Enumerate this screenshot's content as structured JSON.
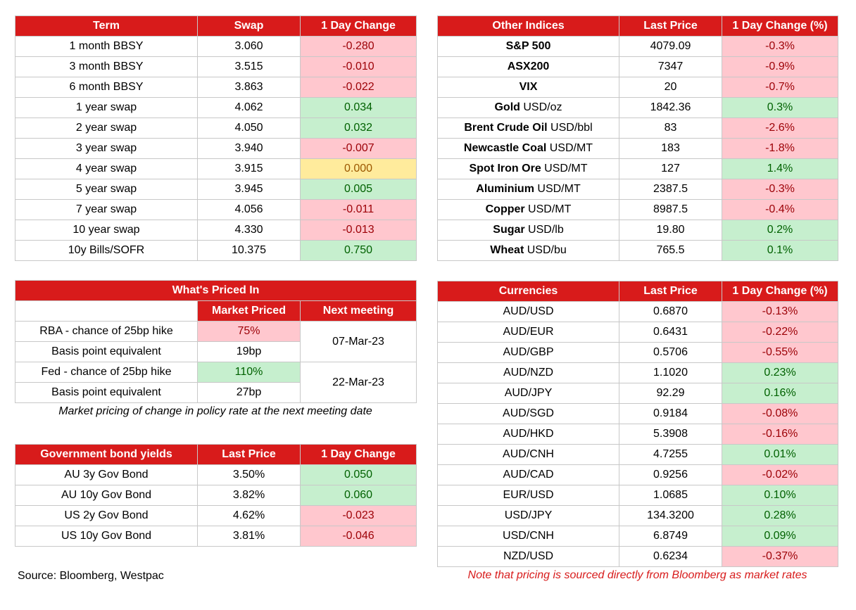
{
  "swaps": {
    "headers": [
      "Term",
      "Swap",
      "1 Day Change"
    ],
    "rows": [
      {
        "term": "1 month BBSY",
        "swap": "3.060",
        "change": "-0.280",
        "dir": "neg"
      },
      {
        "term": "3 month BBSY",
        "swap": "3.515",
        "change": "-0.010",
        "dir": "neg"
      },
      {
        "term": "6 month BBSY",
        "swap": "3.863",
        "change": "-0.022",
        "dir": "neg"
      },
      {
        "term": "1 year swap",
        "swap": "4.062",
        "change": "0.034",
        "dir": "pos"
      },
      {
        "term": "2 year swap",
        "swap": "4.050",
        "change": "0.032",
        "dir": "pos"
      },
      {
        "term": "3 year swap",
        "swap": "3.940",
        "change": "-0.007",
        "dir": "neg"
      },
      {
        "term": "4 year swap",
        "swap": "3.915",
        "change": "0.000",
        "dir": "neu"
      },
      {
        "term": "5 year swap",
        "swap": "3.945",
        "change": "0.005",
        "dir": "pos"
      },
      {
        "term": "7 year swap",
        "swap": "4.056",
        "change": "-0.011",
        "dir": "neg"
      },
      {
        "term": "10 year swap",
        "swap": "4.330",
        "change": "-0.013",
        "dir": "neg"
      },
      {
        "term": "10y Bills/SOFR",
        "swap": "10.375",
        "change": "0.750",
        "dir": "pos"
      }
    ]
  },
  "other_indices": {
    "headers": [
      "Other Indices",
      "Last Price",
      "1 Day Change (%)"
    ],
    "rows": [
      {
        "name": "S&P 500",
        "unit": "",
        "price": "4079.09",
        "change": "-0.3%",
        "dir": "neg"
      },
      {
        "name": "ASX200",
        "unit": "",
        "price": "7347",
        "change": "-0.9%",
        "dir": "neg"
      },
      {
        "name": "VIX",
        "unit": "",
        "price": "20",
        "change": "-0.7%",
        "dir": "neg"
      },
      {
        "name": "Gold",
        "unit": " USD/oz",
        "price": "1842.36",
        "change": "0.3%",
        "dir": "pos"
      },
      {
        "name": "Brent Crude Oil",
        "unit": " USD/bbl",
        "price": "83",
        "change": "-2.6%",
        "dir": "neg"
      },
      {
        "name": "Newcastle Coal",
        "unit": " USD/MT",
        "price": "183",
        "change": "-1.8%",
        "dir": "neg"
      },
      {
        "name": "Spot Iron Ore",
        "unit": " USD/MT",
        "price": "127",
        "change": "1.4%",
        "dir": "pos"
      },
      {
        "name": "Aluminium",
        "unit": " USD/MT",
        "price": "2387.5",
        "change": "-0.3%",
        "dir": "neg"
      },
      {
        "name": "Copper",
        "unit": " USD/MT",
        "price": "8987.5",
        "change": "-0.4%",
        "dir": "neg"
      },
      {
        "name": "Sugar",
        "unit": " USD/lb",
        "price": "19.80",
        "change": "0.2%",
        "dir": "pos"
      },
      {
        "name": "Wheat",
        "unit": " USD/bu",
        "price": "765.5",
        "change": "0.1%",
        "dir": "pos"
      }
    ]
  },
  "priced_in": {
    "title": "What's Priced In",
    "col_market": "Market Priced",
    "col_next": "Next meeting",
    "rows": [
      {
        "label": "RBA - chance of 25bp hike",
        "value": "75%",
        "dir": "neg"
      },
      {
        "label": "Basis point equivalent",
        "value": "19bp",
        "dir": ""
      },
      {
        "label": "Fed - chance of 25bp hike",
        "value": "110%",
        "dir": "pos"
      },
      {
        "label": "Basis point equivalent",
        "value": "27bp",
        "dir": ""
      }
    ],
    "meetings": [
      "07-Mar-23",
      "22-Mar-23"
    ],
    "caption": "Market pricing of change in policy rate at the next meeting date"
  },
  "currencies": {
    "headers": [
      "Currencies",
      "Last Price",
      "1 Day Change (%)"
    ],
    "rows": [
      {
        "pair": "AUD/USD",
        "price": "0.6870",
        "change": "-0.13%",
        "dir": "neg"
      },
      {
        "pair": "AUD/EUR",
        "price": "0.6431",
        "change": "-0.22%",
        "dir": "neg"
      },
      {
        "pair": "AUD/GBP",
        "price": "0.5706",
        "change": "-0.55%",
        "dir": "neg"
      },
      {
        "pair": "AUD/NZD",
        "price": "1.1020",
        "change": "0.23%",
        "dir": "pos"
      },
      {
        "pair": "AUD/JPY",
        "price": "92.29",
        "change": "0.16%",
        "dir": "pos"
      },
      {
        "pair": "AUD/SGD",
        "price": "0.9184",
        "change": "-0.08%",
        "dir": "neg"
      },
      {
        "pair": "AUD/HKD",
        "price": "5.3908",
        "change": "-0.16%",
        "dir": "neg"
      },
      {
        "pair": "AUD/CNH",
        "price": "4.7255",
        "change": "0.01%",
        "dir": "pos"
      },
      {
        "pair": "AUD/CAD",
        "price": "0.9256",
        "change": "-0.02%",
        "dir": "neg"
      },
      {
        "pair": "EUR/USD",
        "price": "1.0685",
        "change": "0.10%",
        "dir": "pos"
      },
      {
        "pair": "USD/JPY",
        "price": "134.3200",
        "change": "0.28%",
        "dir": "pos"
      },
      {
        "pair": "USD/CNH",
        "price": "6.8749",
        "change": "0.09%",
        "dir": "pos"
      },
      {
        "pair": "NZD/USD",
        "price": "0.6234",
        "change": "-0.37%",
        "dir": "neg"
      }
    ]
  },
  "bonds": {
    "headers": [
      "Government bond yields",
      "Last Price",
      "1 Day Change"
    ],
    "rows": [
      {
        "name": "AU 3y Gov Bond",
        "price": "3.50%",
        "change": "0.050",
        "dir": "pos"
      },
      {
        "name": "AU 10y Gov Bond",
        "price": "3.82%",
        "change": "0.060",
        "dir": "pos"
      },
      {
        "name": "US 2y Gov Bond",
        "price": "4.62%",
        "change": "-0.023",
        "dir": "neg"
      },
      {
        "name": "US 10y Gov Bond",
        "price": "3.81%",
        "change": "-0.046",
        "dir": "neg"
      }
    ]
  },
  "footer": {
    "source": "Source: Bloomberg, Westpac",
    "note": "Note that pricing is sourced directly from Bloomberg as market rates"
  }
}
